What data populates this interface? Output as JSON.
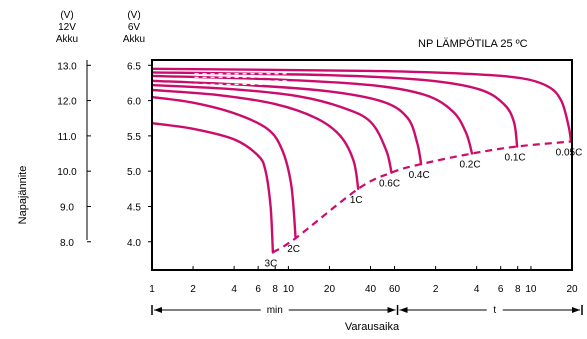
{
  "chart_data": {
    "type": "line",
    "title": "",
    "annotation": "NP   LÄMPÖTILA 25 ºC",
    "xlabel": "Varausaika",
    "ylabel": "Napajännite",
    "y_axes": [
      {
        "unit": "(V)",
        "voltage": "12V",
        "name": "Akku",
        "ticks": [
          "13.0",
          "12.0",
          "11.0",
          "10.0",
          "9.0",
          "8.0"
        ],
        "ylim": [
          7.2,
          13.15
        ]
      },
      {
        "unit": "(V)",
        "voltage": "6V",
        "name": "Akku",
        "ticks": [
          "6.5",
          "6.0",
          "5.5",
          "5.0",
          "4.5",
          "4.0"
        ],
        "ylim": [
          3.6,
          6.575
        ]
      }
    ],
    "x_ticks": {
      "min": [
        "1",
        "2",
        "4",
        "6",
        "8",
        "10",
        "20",
        "40",
        "60"
      ],
      "t": [
        "2",
        "4",
        "6",
        "8",
        "10",
        "20"
      ]
    },
    "x_ranges": {
      "min_label": "min",
      "t_label": "t"
    },
    "series": [
      {
        "name": "3C",
        "x_min": [
          1,
          2,
          4,
          6,
          6.8,
          7.4,
          7.7
        ],
        "y_6v": [
          5.68,
          5.6,
          5.45,
          5.22,
          5.0,
          4.5,
          3.85
        ]
      },
      {
        "name": "2C",
        "x_min": [
          1,
          2,
          4,
          7,
          9,
          10.5,
          11.3
        ],
        "y_6v": [
          6.05,
          5.97,
          5.82,
          5.6,
          5.3,
          4.8,
          4.05
        ]
      },
      {
        "name": "1C",
        "x_min": [
          1,
          3,
          8,
          16,
          24,
          30,
          32.5
        ],
        "y_6v": [
          6.15,
          6.08,
          5.95,
          5.75,
          5.5,
          5.15,
          4.75
        ]
      },
      {
        "name": "0.6C",
        "x_min": [
          1,
          4,
          12,
          25,
          40,
          52,
          57
        ],
        "y_6v": [
          6.22,
          6.16,
          6.06,
          5.9,
          5.7,
          5.3,
          4.98
        ]
      },
      {
        "name": "0.4C",
        "x_min": [
          1,
          5,
          20,
          50,
          75,
          88,
          94
        ],
        "y_6v": [
          6.28,
          6.22,
          6.13,
          5.98,
          5.75,
          5.4,
          5.1
        ]
      },
      {
        "name": "0.2C",
        "x_min": [
          1,
          8,
          40,
          100,
          160,
          200,
          222
        ],
        "y_6v": [
          6.35,
          6.3,
          6.22,
          6.08,
          5.85,
          5.55,
          5.25
        ]
      },
      {
        "name": "0.1C",
        "x_min": [
          1,
          20,
          100,
          250,
          380,
          450,
          475
        ],
        "y_6v": [
          6.4,
          6.36,
          6.29,
          6.16,
          5.95,
          5.7,
          5.35
        ]
      },
      {
        "name": "0.05C",
        "x_min": [
          1,
          40,
          200,
          500,
          800,
          1000,
          1130,
          1180
        ],
        "y_6v": [
          6.45,
          6.42,
          6.38,
          6.32,
          6.2,
          6.0,
          5.65,
          5.42
        ]
      }
    ],
    "final_voltage_line": {
      "x_min": [
        7.7,
        11.3,
        32.5,
        57,
        94,
        222,
        475,
        1180
      ],
      "y_6v": [
        3.85,
        4.05,
        4.75,
        4.98,
        5.1,
        5.25,
        5.35,
        5.42
      ]
    },
    "colors": {
      "curve": "#cc0c6c",
      "axis": "#000000"
    }
  }
}
